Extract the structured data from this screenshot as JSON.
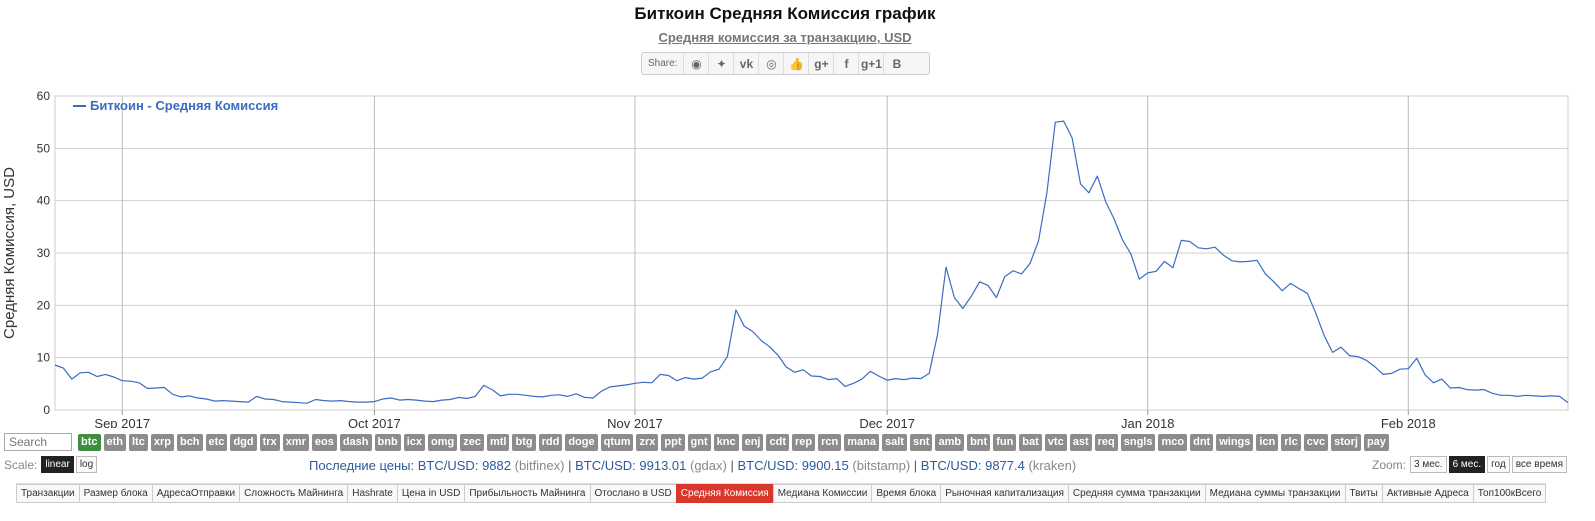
{
  "header": {
    "title": "Биткоин Средняя Комиссия график",
    "subtitle": "Средняя комиссия за транзакцию, USD",
    "share_label": "Share:",
    "share_buttons": [
      {
        "icon": "reddit-icon",
        "glyph": "◉"
      },
      {
        "icon": "twitter-icon",
        "glyph": "✦"
      },
      {
        "icon": "vk-icon",
        "glyph": "vk"
      },
      {
        "icon": "weibo-icon",
        "glyph": "◎"
      },
      {
        "icon": "like-icon",
        "glyph": "👍"
      },
      {
        "icon": "google-plus-icon",
        "glyph": "g+"
      },
      {
        "icon": "facebook-icon",
        "glyph": "f"
      },
      {
        "icon": "google-plus-one-icon",
        "glyph": "g+1"
      },
      {
        "icon": "blogger-icon",
        "glyph": "B"
      }
    ]
  },
  "chart_data": {
    "type": "line",
    "title": "Биткоин Средняя Комиссия график",
    "subtitle": "Средняя комиссия за транзакцию, USD",
    "ylabel": "Средняя Комиссия, USD",
    "ylim": [
      0,
      60
    ],
    "yticks": [
      0,
      10,
      20,
      30,
      40,
      50,
      60
    ],
    "xlim": [
      "2017-08-24",
      "2018-02-20"
    ],
    "xticks": [
      {
        "date": "2017-09-01",
        "label": "Sep 2017"
      },
      {
        "date": "2017-10-01",
        "label": "Oct 2017"
      },
      {
        "date": "2017-11-01",
        "label": "Nov 2017"
      },
      {
        "date": "2017-12-01",
        "label": "Dec 2017"
      },
      {
        "date": "2018-01-01",
        "label": "Jan 2018"
      },
      {
        "date": "2018-02-01",
        "label": "Feb 2018"
      }
    ],
    "grid": true,
    "legend_position": "top-left",
    "series": [
      {
        "name": "Биткоин - Средняя Комиссия",
        "color": "#3b6cc2",
        "points": [
          [
            "2017-08-24",
            8.6
          ],
          [
            "2017-08-25",
            8.0
          ],
          [
            "2017-08-26",
            5.9
          ],
          [
            "2017-08-27",
            7.1
          ],
          [
            "2017-08-28",
            7.2
          ],
          [
            "2017-08-29",
            6.4
          ],
          [
            "2017-08-30",
            6.8
          ],
          [
            "2017-08-31",
            6.3
          ],
          [
            "2017-09-01",
            5.6
          ],
          [
            "2017-09-02",
            5.5
          ],
          [
            "2017-09-03",
            5.2
          ],
          [
            "2017-09-04",
            4.1
          ],
          [
            "2017-09-05",
            4.2
          ],
          [
            "2017-09-06",
            4.3
          ],
          [
            "2017-09-07",
            3.0
          ],
          [
            "2017-09-08",
            2.5
          ],
          [
            "2017-09-09",
            2.7
          ],
          [
            "2017-09-10",
            2.3
          ],
          [
            "2017-09-11",
            2.1
          ],
          [
            "2017-09-12",
            1.7
          ],
          [
            "2017-09-13",
            1.8
          ],
          [
            "2017-09-14",
            1.7
          ],
          [
            "2017-09-15",
            1.6
          ],
          [
            "2017-09-16",
            1.5
          ],
          [
            "2017-09-17",
            2.6
          ],
          [
            "2017-09-18",
            2.1
          ],
          [
            "2017-09-19",
            2.0
          ],
          [
            "2017-09-20",
            1.6
          ],
          [
            "2017-09-21",
            1.5
          ],
          [
            "2017-09-22",
            1.4
          ],
          [
            "2017-09-23",
            1.3
          ],
          [
            "2017-09-24",
            2.0
          ],
          [
            "2017-09-25",
            1.8
          ],
          [
            "2017-09-26",
            1.7
          ],
          [
            "2017-09-27",
            1.8
          ],
          [
            "2017-09-28",
            1.6
          ],
          [
            "2017-09-29",
            1.5
          ],
          [
            "2017-09-30",
            1.5
          ],
          [
            "2017-10-01",
            1.6
          ],
          [
            "2017-10-02",
            2.1
          ],
          [
            "2017-10-03",
            2.3
          ],
          [
            "2017-10-04",
            1.9
          ],
          [
            "2017-10-05",
            2.0
          ],
          [
            "2017-10-06",
            1.9
          ],
          [
            "2017-10-07",
            1.7
          ],
          [
            "2017-10-08",
            1.6
          ],
          [
            "2017-10-09",
            1.9
          ],
          [
            "2017-10-10",
            2.0
          ],
          [
            "2017-10-11",
            2.4
          ],
          [
            "2017-10-12",
            2.2
          ],
          [
            "2017-10-13",
            2.6
          ],
          [
            "2017-10-14",
            4.7
          ],
          [
            "2017-10-15",
            3.9
          ],
          [
            "2017-10-16",
            2.7
          ],
          [
            "2017-10-17",
            3.0
          ],
          [
            "2017-10-18",
            3.0
          ],
          [
            "2017-10-19",
            2.8
          ],
          [
            "2017-10-20",
            2.6
          ],
          [
            "2017-10-21",
            2.5
          ],
          [
            "2017-10-22",
            2.8
          ],
          [
            "2017-10-23",
            2.9
          ],
          [
            "2017-10-24",
            2.6
          ],
          [
            "2017-10-25",
            3.1
          ],
          [
            "2017-10-26",
            2.4
          ],
          [
            "2017-10-27",
            2.3
          ],
          [
            "2017-10-28",
            3.6
          ],
          [
            "2017-10-29",
            4.4
          ],
          [
            "2017-10-30",
            4.6
          ],
          [
            "2017-10-31",
            4.8
          ],
          [
            "2017-11-01",
            5.1
          ],
          [
            "2017-11-02",
            5.3
          ],
          [
            "2017-11-03",
            5.2
          ],
          [
            "2017-11-04",
            6.8
          ],
          [
            "2017-11-05",
            6.6
          ],
          [
            "2017-11-06",
            5.6
          ],
          [
            "2017-11-07",
            6.2
          ],
          [
            "2017-11-08",
            5.9
          ],
          [
            "2017-11-09",
            6.1
          ],
          [
            "2017-11-10",
            7.3
          ],
          [
            "2017-11-11",
            7.8
          ],
          [
            "2017-11-12",
            10.2
          ],
          [
            "2017-11-13",
            19.1
          ],
          [
            "2017-11-14",
            16.0
          ],
          [
            "2017-11-15",
            15.0
          ],
          [
            "2017-11-16",
            13.3
          ],
          [
            "2017-11-17",
            12.1
          ],
          [
            "2017-11-18",
            10.5
          ],
          [
            "2017-11-19",
            8.2
          ],
          [
            "2017-11-20",
            7.2
          ],
          [
            "2017-11-21",
            7.7
          ],
          [
            "2017-11-22",
            6.5
          ],
          [
            "2017-11-23",
            6.4
          ],
          [
            "2017-11-24",
            5.8
          ],
          [
            "2017-11-25",
            6.0
          ],
          [
            "2017-11-26",
            4.5
          ],
          [
            "2017-11-27",
            5.1
          ],
          [
            "2017-11-28",
            5.9
          ],
          [
            "2017-11-29",
            7.4
          ],
          [
            "2017-11-30",
            6.5
          ],
          [
            "2017-12-01",
            5.7
          ],
          [
            "2017-12-02",
            6.0
          ],
          [
            "2017-12-03",
            5.8
          ],
          [
            "2017-12-04",
            6.1
          ],
          [
            "2017-12-05",
            6.0
          ],
          [
            "2017-12-06",
            7.0
          ],
          [
            "2017-12-07",
            14.5
          ],
          [
            "2017-12-08",
            27.3
          ],
          [
            "2017-12-09",
            21.5
          ],
          [
            "2017-12-10",
            19.4
          ],
          [
            "2017-12-11",
            21.7
          ],
          [
            "2017-12-12",
            24.5
          ],
          [
            "2017-12-13",
            23.8
          ],
          [
            "2017-12-14",
            21.5
          ],
          [
            "2017-12-15",
            25.5
          ],
          [
            "2017-12-16",
            26.6
          ],
          [
            "2017-12-17",
            26.0
          ],
          [
            "2017-12-18",
            28.0
          ],
          [
            "2017-12-19",
            32.3
          ],
          [
            "2017-12-20",
            41.5
          ],
          [
            "2017-12-21",
            55.0
          ],
          [
            "2017-12-22",
            55.2
          ],
          [
            "2017-12-23",
            52.0
          ],
          [
            "2017-12-24",
            43.2
          ],
          [
            "2017-12-25",
            41.5
          ],
          [
            "2017-12-26",
            44.7
          ],
          [
            "2017-12-27",
            39.8
          ],
          [
            "2017-12-28",
            36.5
          ],
          [
            "2017-12-29",
            32.5
          ],
          [
            "2017-12-30",
            29.8
          ],
          [
            "2017-12-31",
            25.0
          ],
          [
            "2018-01-01",
            26.2
          ],
          [
            "2018-01-02",
            26.5
          ],
          [
            "2018-01-03",
            28.4
          ],
          [
            "2018-01-04",
            27.2
          ],
          [
            "2018-01-05",
            32.4
          ],
          [
            "2018-01-06",
            32.2
          ],
          [
            "2018-01-07",
            31.0
          ],
          [
            "2018-01-08",
            30.8
          ],
          [
            "2018-01-09",
            31.1
          ],
          [
            "2018-01-10",
            29.6
          ],
          [
            "2018-01-11",
            28.5
          ],
          [
            "2018-01-12",
            28.3
          ],
          [
            "2018-01-13",
            28.4
          ],
          [
            "2018-01-14",
            28.6
          ],
          [
            "2018-01-15",
            26.0
          ],
          [
            "2018-01-16",
            24.5
          ],
          [
            "2018-01-17",
            22.8
          ],
          [
            "2018-01-18",
            24.2
          ],
          [
            "2018-01-19",
            23.2
          ],
          [
            "2018-01-20",
            22.3
          ],
          [
            "2018-01-21",
            18.5
          ],
          [
            "2018-01-22",
            14.2
          ],
          [
            "2018-01-23",
            11.0
          ],
          [
            "2018-01-24",
            12.0
          ],
          [
            "2018-01-25",
            10.4
          ],
          [
            "2018-01-26",
            10.2
          ],
          [
            "2018-01-27",
            9.5
          ],
          [
            "2018-01-28",
            8.3
          ],
          [
            "2018-01-29",
            6.8
          ],
          [
            "2018-01-30",
            7.0
          ],
          [
            "2018-01-31",
            7.8
          ],
          [
            "2018-02-01",
            7.9
          ],
          [
            "2018-02-02",
            9.9
          ],
          [
            "2018-02-03",
            6.7
          ],
          [
            "2018-02-04",
            5.2
          ],
          [
            "2018-02-05",
            5.9
          ],
          [
            "2018-02-06",
            4.2
          ],
          [
            "2018-02-07",
            4.3
          ],
          [
            "2018-02-08",
            3.9
          ],
          [
            "2018-02-09",
            3.8
          ],
          [
            "2018-02-10",
            3.9
          ],
          [
            "2018-02-11",
            3.2
          ],
          [
            "2018-02-12",
            2.8
          ],
          [
            "2018-02-13",
            2.8
          ],
          [
            "2018-02-14",
            2.6
          ],
          [
            "2018-02-15",
            2.8
          ],
          [
            "2018-02-16",
            2.7
          ],
          [
            "2018-02-17",
            2.6
          ],
          [
            "2018-02-18",
            2.7
          ],
          [
            "2018-02-19",
            2.6
          ],
          [
            "2018-02-20",
            1.4
          ]
        ]
      }
    ]
  },
  "coins": {
    "search_placeholder": "Search",
    "items": [
      {
        "label": "btc",
        "active": true
      },
      {
        "label": "eth"
      },
      {
        "label": "ltc"
      },
      {
        "label": "xrp"
      },
      {
        "label": "bch"
      },
      {
        "label": "etc"
      },
      {
        "label": "dgd"
      },
      {
        "label": "trx"
      },
      {
        "label": "xmr"
      },
      {
        "label": "eos"
      },
      {
        "label": "dash"
      },
      {
        "label": "bnb"
      },
      {
        "label": "icx"
      },
      {
        "label": "omg"
      },
      {
        "label": "zec"
      },
      {
        "label": "mtl"
      },
      {
        "label": "btg"
      },
      {
        "label": "rdd"
      },
      {
        "label": "doge"
      },
      {
        "label": "qtum"
      },
      {
        "label": "zrx"
      },
      {
        "label": "ppt"
      },
      {
        "label": "gnt"
      },
      {
        "label": "knc"
      },
      {
        "label": "enj"
      },
      {
        "label": "cdt"
      },
      {
        "label": "rep"
      },
      {
        "label": "rcn"
      },
      {
        "label": "mana"
      },
      {
        "label": "salt"
      },
      {
        "label": "snt"
      },
      {
        "label": "amb"
      },
      {
        "label": "bnt"
      },
      {
        "label": "fun"
      },
      {
        "label": "bat"
      },
      {
        "label": "vtc"
      },
      {
        "label": "ast"
      },
      {
        "label": "req"
      },
      {
        "label": "sngls"
      },
      {
        "label": "mco"
      },
      {
        "label": "dnt"
      },
      {
        "label": "wings"
      },
      {
        "label": "icn"
      },
      {
        "label": "rlc"
      },
      {
        "label": "cvc"
      },
      {
        "label": "storj"
      },
      {
        "label": "pay"
      }
    ]
  },
  "scale": {
    "label": "Scale:",
    "options": [
      {
        "label": "linear",
        "active": true
      },
      {
        "label": "log"
      }
    ]
  },
  "prices": {
    "prefix": "Последние цены:",
    "items": [
      {
        "pair": "BTC/USD:",
        "value": "9882",
        "source": "(bitfinex)"
      },
      {
        "pair": "BTC/USD:",
        "value": "9913.01",
        "source": "(gdax)"
      },
      {
        "pair": "BTC/USD:",
        "value": "9900.15",
        "source": "(bitstamp)"
      },
      {
        "pair": "BTC/USD:",
        "value": "9877.4",
        "source": "(kraken)"
      }
    ]
  },
  "zoom": {
    "label": "Zoom:",
    "options": [
      {
        "label": "3 мес."
      },
      {
        "label": "6 мес.",
        "active": true
      },
      {
        "label": "год"
      },
      {
        "label": "все время"
      }
    ]
  },
  "tabs": [
    {
      "label": "Транзакции"
    },
    {
      "label": "Размер блока"
    },
    {
      "label": "АдресаОтправки"
    },
    {
      "label": "Сложность Майнинга"
    },
    {
      "label": "Hashrate"
    },
    {
      "label": "Цена in USD"
    },
    {
      "label": "Прибыльность Майнинга"
    },
    {
      "label": "Отослано в USD"
    },
    {
      "label": "Средняя Комиссия",
      "active": true
    },
    {
      "label": "Медиана Комиссии"
    },
    {
      "label": "Время блока"
    },
    {
      "label": "Рыночная капитализация"
    },
    {
      "label": "Средняя сумма транзакции"
    },
    {
      "label": "Медиана суммы транзакции"
    },
    {
      "label": "Твиты"
    },
    {
      "label": "Активные Адреса"
    },
    {
      "label": "Топ100кВсего"
    }
  ]
}
